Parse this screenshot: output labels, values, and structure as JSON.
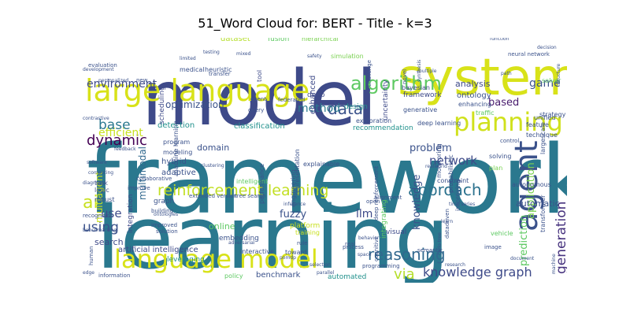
{
  "title": "51_Word Cloud for: BERT - Title - k=3",
  "chart_data": {
    "type": "word_cloud",
    "title": "51_Word Cloud for: BERT - Title - k=3",
    "words": [
      {
        "text": "framework",
        "color": "#2a788e"
      },
      {
        "text": "learning",
        "color": "#2a788e"
      },
      {
        "text": "model",
        "color": "#3e4a89"
      },
      {
        "text": "system",
        "color": "#d8e219"
      },
      {
        "text": "large language",
        "color": "#d8e219"
      },
      {
        "text": "language model",
        "color": "#d8e219"
      },
      {
        "text": "agent",
        "color": "#3b528b"
      },
      {
        "text": "planning",
        "color": "#d0e11c"
      },
      {
        "text": "reinforcement learning",
        "color": "#c2df23"
      },
      {
        "text": "algorithm",
        "color": "#5ec962"
      },
      {
        "text": "approach",
        "color": "#2c728e"
      },
      {
        "text": "reasoning",
        "color": "#31688e"
      },
      {
        "text": "data",
        "color": "#3b528b"
      },
      {
        "text": "dynamic",
        "color": "#440154"
      },
      {
        "text": "ai",
        "color": "#c8e020"
      },
      {
        "text": "knowledge graph",
        "color": "#3e4a89"
      },
      {
        "text": "using",
        "color": "#3b528b"
      },
      {
        "text": "efficient",
        "color": "#c8e020"
      },
      {
        "text": "base",
        "color": "#2a788e"
      },
      {
        "text": "method",
        "color": "#2a788e"
      },
      {
        "text": "network",
        "color": "#3e4a89"
      },
      {
        "text": "generation",
        "color": "#46327e"
      },
      {
        "text": "application",
        "color": "#7ad151"
      },
      {
        "text": "via",
        "color": "#b5de2b"
      },
      {
        "text": "game",
        "color": "#3b528b"
      },
      {
        "text": "based",
        "color": "#481b6d"
      },
      {
        "text": "environment",
        "color": "#3e4a89"
      },
      {
        "text": "llm",
        "color": "#3e4a89"
      },
      {
        "text": "use",
        "color": "#3e4a89"
      },
      {
        "text": "problem",
        "color": "#3b528b"
      },
      {
        "text": "knowledge",
        "color": "#3b528b"
      },
      {
        "text": "prediction",
        "color": "#5ec962"
      },
      {
        "text": "multiagent",
        "color": "#c8e020"
      },
      {
        "text": "multimodal",
        "color": "#31688e"
      },
      {
        "text": "optimization",
        "color": "#3b528b"
      },
      {
        "text": "analysis",
        "color": "#3e4a89"
      },
      {
        "text": "ontology",
        "color": "#3b528b"
      },
      {
        "text": "fuzzy",
        "color": "#3b528b"
      },
      {
        "text": "hybrid",
        "color": "#3b528b"
      },
      {
        "text": "adaptive",
        "color": "#3b528b"
      },
      {
        "text": "domain",
        "color": "#3b528b"
      },
      {
        "text": "online",
        "color": "#5ec962"
      },
      {
        "text": "search",
        "color": "#3e4a89"
      },
      {
        "text": "automatic",
        "color": "#3b528b"
      },
      {
        "text": "detection",
        "color": "#21918c"
      },
      {
        "text": "classification",
        "color": "#21918c"
      },
      {
        "text": "recommendation",
        "color": "#21918c"
      },
      {
        "text": "design",
        "color": "#21918c"
      },
      {
        "text": "deep",
        "color": "#3e4a89"
      },
      {
        "text": "enhanced",
        "color": "#3e4a89"
      },
      {
        "text": "uncertainty",
        "color": "#3e4a89"
      },
      {
        "text": "bayesian",
        "color": "#3e4a89"
      },
      {
        "text": "framework",
        "color": "#3e4a89"
      },
      {
        "text": "embedding",
        "color": "#3b528b"
      },
      {
        "text": "platform",
        "color": "#c8e020"
      },
      {
        "text": "training",
        "color": "#c8e020"
      },
      {
        "text": "automated",
        "color": "#21918c"
      },
      {
        "text": "benchmark",
        "color": "#3b528b"
      },
      {
        "text": "artificial intelligence",
        "color": "#3e4a89"
      },
      {
        "text": "leveraging",
        "color": "#21918c"
      },
      {
        "text": "policy",
        "color": "#5ec962"
      },
      {
        "text": "integration",
        "color": "#3e4a89"
      },
      {
        "text": "graph",
        "color": "#3b528b"
      },
      {
        "text": "dataset",
        "color": "#b5de2b"
      },
      {
        "text": "fusion",
        "color": "#5ec962"
      },
      {
        "text": "tool",
        "color": "#3e4a89"
      },
      {
        "text": "visual",
        "color": "#3e4a89"
      },
      {
        "text": "integrating",
        "color": "#5ec962"
      },
      {
        "text": "interactive",
        "color": "#3b528b"
      },
      {
        "text": "toward",
        "color": "#3b528b"
      },
      {
        "text": "program",
        "color": "#3b528b"
      },
      {
        "text": "modeling",
        "color": "#3b528b"
      },
      {
        "text": "scheduling",
        "color": "#3e4a89"
      },
      {
        "text": "intelligent",
        "color": "#5ec962"
      },
      {
        "text": "medical",
        "color": "#3b528b"
      },
      {
        "text": "heuristic",
        "color": "#3b528b"
      },
      {
        "text": "hierarchical",
        "color": "#7ad151"
      },
      {
        "text": "simulation",
        "color": "#7ad151"
      },
      {
        "text": "exploration",
        "color": "#3b528b"
      },
      {
        "text": "generative",
        "color": "#3b528b"
      },
      {
        "text": "traffic",
        "color": "#5ec962"
      },
      {
        "text": "solver",
        "color": "#5ec962"
      },
      {
        "text": "strategy",
        "color": "#3b528b"
      },
      {
        "text": "feature",
        "color": "#3b528b"
      },
      {
        "text": "unified",
        "color": "#3b528b"
      },
      {
        "text": "solving",
        "color": "#3b528b"
      },
      {
        "text": "plan",
        "color": "#7ad151"
      },
      {
        "text": "largescale",
        "color": "#3b528b"
      },
      {
        "text": "deep learning",
        "color": "#3b528b"
      },
      {
        "text": "probabilistic",
        "color": "#3b528b"
      },
      {
        "text": "monitoring",
        "color": "#3b528b"
      },
      {
        "text": "constraint",
        "color": "#3b528b"
      },
      {
        "text": "autonomous",
        "color": "#3b528b"
      },
      {
        "text": "improving",
        "color": "#3b528b"
      },
      {
        "text": "transformer",
        "color": "#3b528b"
      },
      {
        "text": "vehicle",
        "color": "#5ec962"
      },
      {
        "text": "explainable",
        "color": "#3b528b"
      },
      {
        "text": "representation",
        "color": "#3b528b"
      },
      {
        "text": "performance",
        "color": "#3b528b"
      },
      {
        "text": "engineering",
        "color": "#3b528b"
      },
      {
        "text": "robust",
        "color": "#3b528b"
      },
      {
        "text": "logic",
        "color": "#3b528b"
      },
      {
        "text": "task",
        "color": "#3b528b"
      },
      {
        "text": "technique",
        "color": "#3b528b"
      },
      {
        "text": "neural network",
        "color": "#3b528b"
      },
      {
        "text": "enhancing",
        "color": "#3b528b"
      },
      {
        "text": "machine learning",
        "color": "#3b528b"
      },
      {
        "text": "extended version",
        "color": "#3b528b"
      },
      {
        "text": "tree search",
        "color": "#3b528b"
      },
      {
        "text": "deep reinforcement",
        "color": "#3b528b"
      },
      {
        "text": "cognitive",
        "color": "#3b528b"
      },
      {
        "text": "semantic",
        "color": "#3b528b"
      },
      {
        "text": "datadriven",
        "color": "#3b528b"
      },
      {
        "text": "information",
        "color": "#3b528b"
      },
      {
        "text": "human",
        "color": "#3b528b"
      },
      {
        "text": "programming",
        "color": "#3b528b"
      },
      {
        "text": "process",
        "color": "#3b528b"
      },
      {
        "text": "image",
        "color": "#3b528b"
      },
      {
        "text": "rule",
        "color": "#3b528b"
      },
      {
        "text": "open",
        "color": "#3b528b"
      },
      {
        "text": "recognition",
        "color": "#3b528b"
      },
      {
        "text": "real",
        "color": "#3b528b"
      },
      {
        "text": "alignment",
        "color": "#3b528b"
      },
      {
        "text": "collaborative",
        "color": "#3b528b"
      },
      {
        "text": "improve",
        "color": "#3b528b"
      },
      {
        "text": "building",
        "color": "#3b528b"
      },
      {
        "text": "improved",
        "color": "#3b528b"
      },
      {
        "text": "solution",
        "color": "#3b528b"
      },
      {
        "text": "function",
        "color": "#3b528b"
      },
      {
        "text": "decision",
        "color": "#3b528b"
      },
      {
        "text": "path",
        "color": "#3b528b"
      },
      {
        "text": "challenge",
        "color": "#3b528b"
      },
      {
        "text": "novel",
        "color": "#3b528b"
      },
      {
        "text": "federated",
        "color": "#3b528b"
      },
      {
        "text": "event",
        "color": "#3b528b"
      },
      {
        "text": "query",
        "color": "#3b528b"
      },
      {
        "text": "transfer",
        "color": "#3b528b"
      },
      {
        "text": "personalized",
        "color": "#3b528b"
      },
      {
        "text": "new",
        "color": "#3b528b"
      },
      {
        "text": "evaluation",
        "color": "#3b528b"
      },
      {
        "text": "development",
        "color": "#3b528b"
      },
      {
        "text": "testing",
        "color": "#3b528b"
      },
      {
        "text": "safety",
        "color": "#3b528b"
      },
      {
        "text": "multiple",
        "color": "#3b528b"
      },
      {
        "text": "control",
        "color": "#3b528b"
      },
      {
        "text": "diagnosis",
        "color": "#3b528b"
      },
      {
        "text": "benchmarking",
        "color": "#3b528b"
      },
      {
        "text": "computing",
        "color": "#3b528b"
      },
      {
        "text": "software",
        "color": "#3b528b"
      },
      {
        "text": "clustering",
        "color": "#3b528b"
      },
      {
        "text": "ontologies",
        "color": "#3b528b"
      },
      {
        "text": "adversarial",
        "color": "#3b528b"
      },
      {
        "text": "inference",
        "color": "#3b528b"
      },
      {
        "text": "time series",
        "color": "#3b528b"
      },
      {
        "text": "realworld",
        "color": "#3b528b"
      },
      {
        "text": "learn",
        "color": "#3b528b"
      },
      {
        "text": "behavior",
        "color": "#3b528b"
      },
      {
        "text": "parallel",
        "color": "#3b528b"
      },
      {
        "text": "selection",
        "color": "#3b528b"
      },
      {
        "text": "pomdp",
        "color": "#3b528b"
      },
      {
        "text": "document",
        "color": "#3b528b"
      },
      {
        "text": "research",
        "color": "#3b528b"
      },
      {
        "text": "machine",
        "color": "#3b528b"
      },
      {
        "text": "structure",
        "color": "#3b528b"
      },
      {
        "text": "space",
        "color": "#3b528b"
      },
      {
        "text": "carlo tree",
        "color": "#3b528b"
      },
      {
        "text": "synthesis",
        "color": "#3b528b"
      },
      {
        "text": "contrastive",
        "color": "#3b528b"
      },
      {
        "text": "feedback",
        "color": "#3b528b"
      },
      {
        "text": "limited",
        "color": "#3b528b"
      },
      {
        "text": "mixed",
        "color": "#3b528b"
      },
      {
        "text": "edge",
        "color": "#3b528b"
      }
    ]
  }
}
